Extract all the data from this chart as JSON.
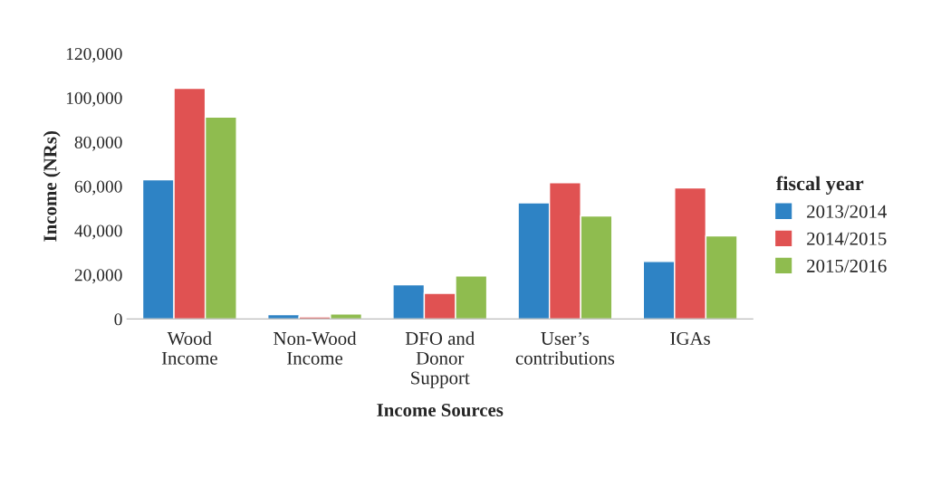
{
  "chart_data": {
    "type": "bar",
    "xlabel": "Income Sources",
    "ylabel": "Income (NRs)",
    "legend_title": "fiscal year",
    "categories": [
      "Wood\nIncome",
      "Non-Wood\nIncome",
      "DFO and\nDonor\nSupport",
      "User’s\ncontributions",
      "IGAs"
    ],
    "series": [
      {
        "name": "2013/2014",
        "color": "#2e83c5",
        "values": [
          63000,
          2000,
          15500,
          52500,
          26000
        ]
      },
      {
        "name": "2014/2015",
        "color": "#e05252",
        "values": [
          104300,
          1000,
          11600,
          61600,
          59300
        ]
      },
      {
        "name": "2015/2016",
        "color": "#8fbc4f",
        "values": [
          91300,
          2300,
          19500,
          46600,
          37600
        ]
      }
    ],
    "ylim": [
      0,
      120000
    ],
    "yticks": [
      {
        "value": 0,
        "label": "0"
      },
      {
        "value": 20000,
        "label": "20,000"
      },
      {
        "value": 40000,
        "label": "40,000"
      },
      {
        "value": 60000,
        "label": "60,000"
      },
      {
        "value": 80000,
        "label": "80,000"
      },
      {
        "value": 100000,
        "label": "100,000"
      },
      {
        "value": 120000,
        "label": "120,000"
      }
    ],
    "grid": false,
    "legend": "right"
  }
}
